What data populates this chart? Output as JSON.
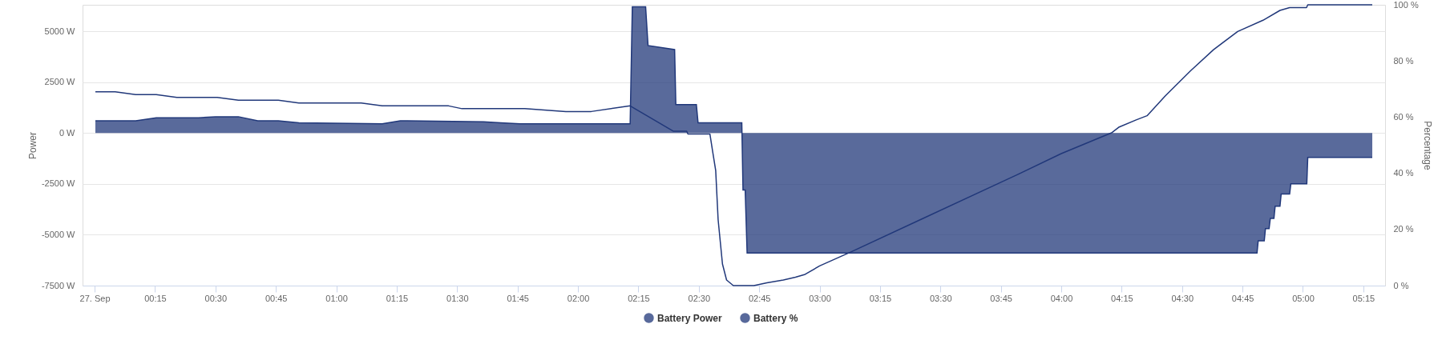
{
  "chart_data": {
    "type": "area",
    "xlim": [
      -0.05,
      5.34
    ],
    "xticks": [
      {
        "value": 0,
        "label": "27. Sep"
      },
      {
        "value": 0.25,
        "label": "00:15"
      },
      {
        "value": 0.5,
        "label": "00:30"
      },
      {
        "value": 0.75,
        "label": "00:45"
      },
      {
        "value": 1,
        "label": "01:00"
      },
      {
        "value": 1.25,
        "label": "01:15"
      },
      {
        "value": 1.5,
        "label": "01:30"
      },
      {
        "value": 1.75,
        "label": "01:45"
      },
      {
        "value": 2,
        "label": "02:00"
      },
      {
        "value": 2.25,
        "label": "02:15"
      },
      {
        "value": 2.5,
        "label": "02:30"
      },
      {
        "value": 2.75,
        "label": "02:45"
      },
      {
        "value": 3,
        "label": "03:00"
      },
      {
        "value": 3.25,
        "label": "03:15"
      },
      {
        "value": 3.5,
        "label": "03:30"
      },
      {
        "value": 3.75,
        "label": "03:45"
      },
      {
        "value": 4,
        "label": "04:00"
      },
      {
        "value": 4.25,
        "label": "04:15"
      },
      {
        "value": 4.5,
        "label": "04:30"
      },
      {
        "value": 4.75,
        "label": "04:45"
      },
      {
        "value": 5,
        "label": "05:00"
      },
      {
        "value": 5.25,
        "label": "05:15"
      }
    ],
    "ylim": [
      -7500,
      6300
    ],
    "yticks": [
      {
        "value": -7500,
        "label": "-7500 W"
      },
      {
        "value": -5000,
        "label": "-5000 W"
      },
      {
        "value": -2500,
        "label": "-2500 W"
      },
      {
        "value": 0,
        "label": "0 W"
      },
      {
        "value": 2500,
        "label": "2500 W"
      },
      {
        "value": 5000,
        "label": "5000 W"
      }
    ],
    "y2lim": [
      0,
      100
    ],
    "y2ticks": [
      {
        "value": 0,
        "label": "0 %"
      },
      {
        "value": 20,
        "label": "20 %"
      },
      {
        "value": 40,
        "label": "40 %"
      },
      {
        "value": 60,
        "label": "60 %"
      },
      {
        "value": 80,
        "label": "80 %"
      },
      {
        "value": 100,
        "label": "100 %"
      }
    ],
    "ylabel": "Power",
    "y2label": "Percentage",
    "grid": "y",
    "legend": "bottom",
    "series": [
      {
        "name": "Battery Power",
        "color": "#21387a",
        "x": [
          0.003,
          0.17,
          0.255,
          0.43,
          0.5,
          0.595,
          0.675,
          0.76,
          0.845,
          1.19,
          1.265,
          1.61,
          1.68,
          1.76,
          2.216,
          2.225,
          2.28,
          2.29,
          2.4,
          2.405,
          2.49,
          2.497,
          2.678,
          2.683,
          2.692,
          2.7,
          4.81,
          4.815,
          4.84,
          4.845,
          4.86,
          4.865,
          4.88,
          4.885,
          4.905,
          4.91,
          4.945,
          4.95,
          5.016,
          5.02,
          5.287
        ],
        "values": [
          600,
          600,
          750,
          750,
          800,
          800,
          600,
          600,
          500,
          450,
          600,
          550,
          500,
          450,
          450,
          6200,
          6200,
          4300,
          4100,
          1400,
          1400,
          500,
          500,
          -2800,
          -2800,
          -5900,
          -5900,
          -5300,
          -5300,
          -4700,
          -4700,
          -4200,
          -4200,
          -3600,
          -3600,
          -3000,
          -3000,
          -2500,
          -2500,
          -1200,
          -1200
        ]
      },
      {
        "name": "Battery %",
        "type": "line",
        "axis": "y2",
        "color": "#21387a",
        "x": [
          0.003,
          0.085,
          0.17,
          0.255,
          0.34,
          0.507,
          0.595,
          0.76,
          0.845,
          1.103,
          1.19,
          1.465,
          1.52,
          1.78,
          1.95,
          2.055,
          2.216,
          2.394,
          2.45,
          2.455,
          2.546,
          2.557,
          2.57,
          2.58,
          2.598,
          2.615,
          2.643,
          2.728,
          2.782,
          2.85,
          2.9,
          2.94,
          3.0,
          3.13,
          3.43,
          3.83,
          4.0,
          4.21,
          4.24,
          4.31,
          4.355,
          4.43,
          4.535,
          4.63,
          4.73,
          4.835,
          4.905,
          4.945,
          5.015,
          5.02,
          5.287
        ],
        "values": [
          69,
          69,
          68,
          68,
          67,
          67,
          66,
          66,
          65,
          65,
          64,
          64,
          63,
          63,
          62,
          62,
          64,
          55,
          55,
          54,
          54,
          48,
          41,
          23.5,
          7.7,
          2,
          0,
          0,
          1,
          2,
          3,
          4,
          7,
          12,
          24,
          40,
          47,
          54.5,
          56.5,
          59,
          60.5,
          67.5,
          76.5,
          84,
          90.5,
          94.5,
          98,
          99,
          99,
          100,
          100
        ]
      }
    ]
  }
}
